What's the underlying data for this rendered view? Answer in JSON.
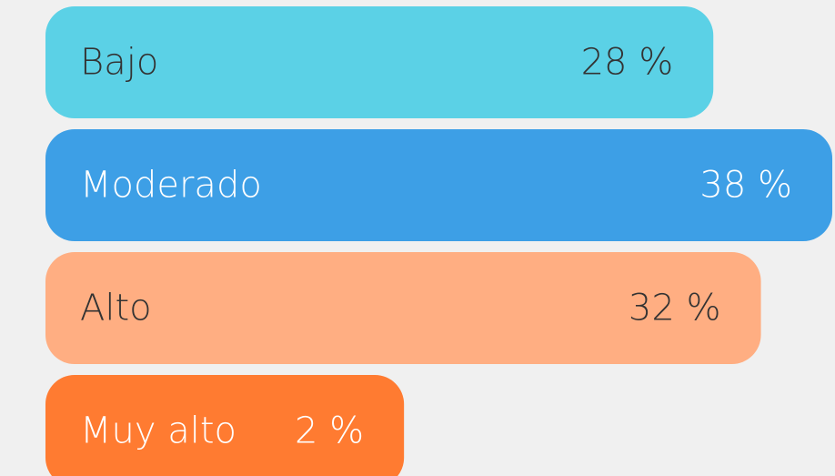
{
  "chart_data": {
    "type": "bar",
    "orientation": "horizontal",
    "categories": [
      "Bajo",
      "Moderado",
      "Alto",
      "Muy alto"
    ],
    "values": [
      28,
      38,
      32,
      2
    ],
    "value_labels": [
      "28 %",
      "38 %",
      "32 %",
      "2 %"
    ],
    "colors": [
      "#5bd1e6",
      "#3d9fe6",
      "#ffae82",
      "#ff7b31"
    ],
    "text_colors": [
      "#333333",
      "#ffffff",
      "#333333",
      "#ffffff"
    ]
  }
}
